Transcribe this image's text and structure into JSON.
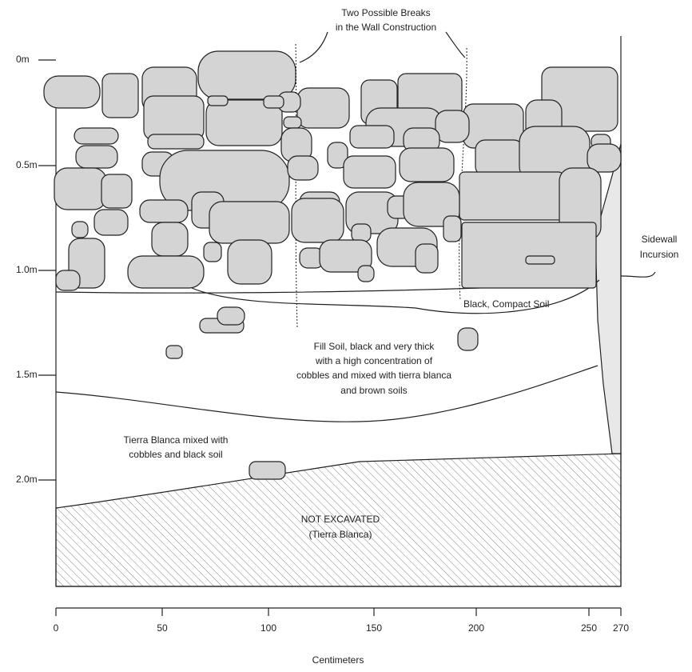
{
  "title_annotation": {
    "lines": [
      "Two Possible Breaks",
      "in the Wall Construction"
    ]
  },
  "sidewall_annotation": {
    "lines": [
      "Sidewall",
      "Incursion"
    ]
  },
  "black_soil_label": "Black, Compact Soil",
  "fill_soil_annotation": {
    "lines": [
      "Fill Soil, black and very thick",
      "with a high concentration of",
      "cobbles and mixed with tierra blanca",
      "and brown soils"
    ]
  },
  "tierra_blanca_annotation": {
    "lines": [
      "Tierra Blanca mixed with",
      "cobbles and black soil"
    ]
  },
  "not_excavated_annotation": {
    "lines": [
      "NOT EXCAVATED",
      "(Tierra Blanca)"
    ]
  },
  "depth_ticks": [
    "0m",
    "0.5m",
    "1.0m",
    "1.5m",
    "2.0m"
  ],
  "x_ticks": [
    "0",
    "50",
    "100",
    "150",
    "200",
    "250",
    "270"
  ],
  "x_axis_label": "Centimeters"
}
